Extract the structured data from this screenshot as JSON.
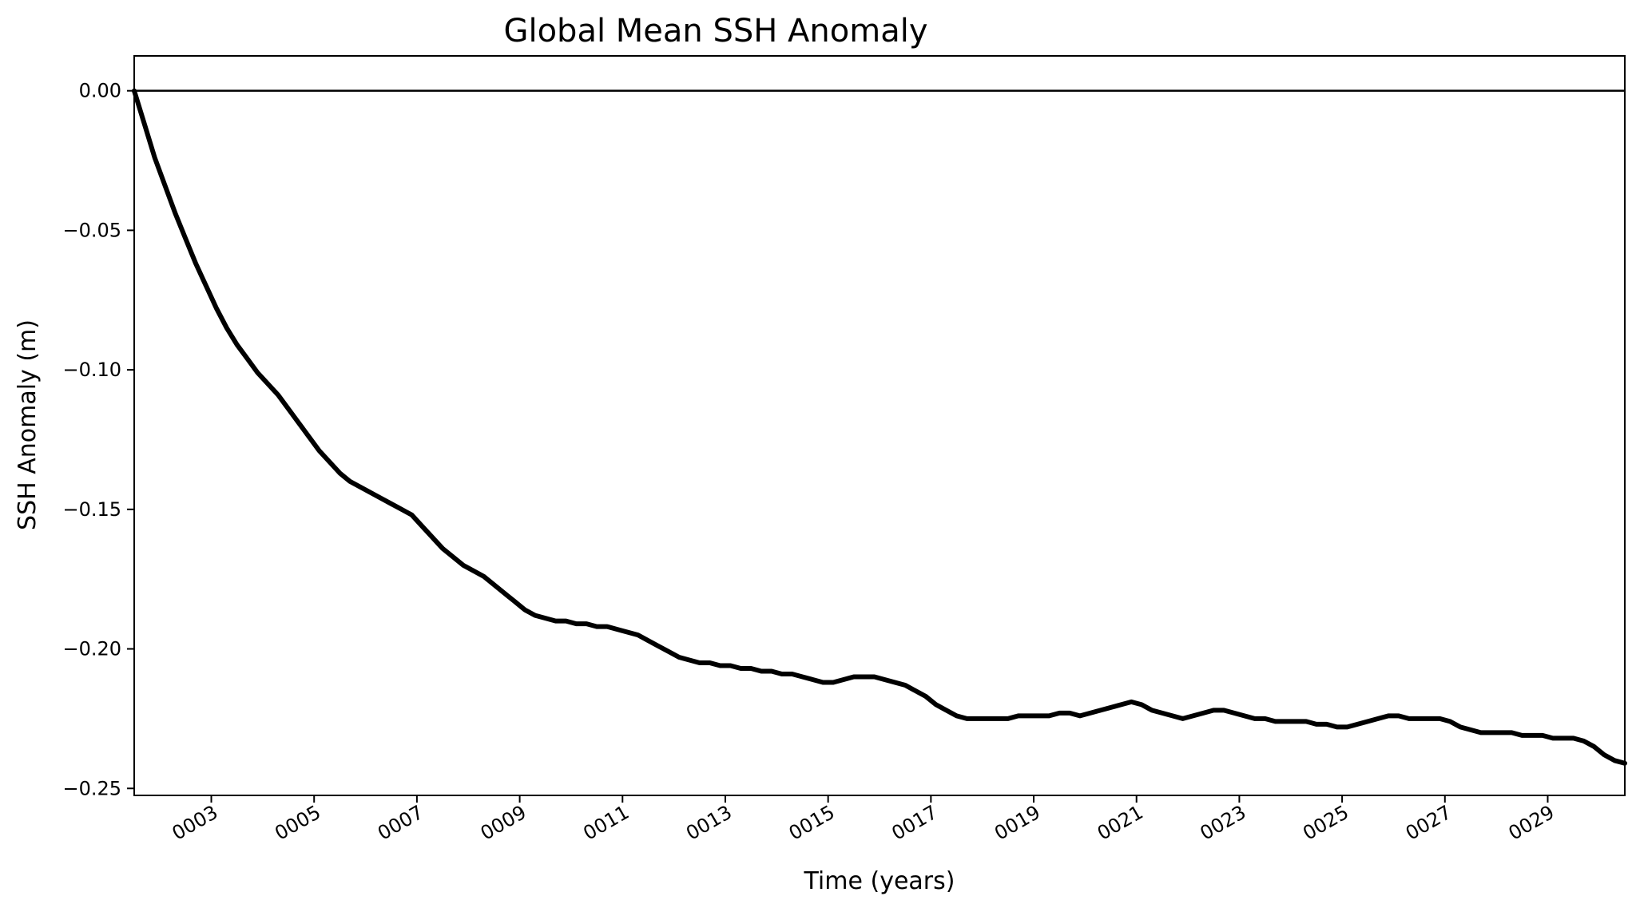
{
  "chart_data": {
    "type": "line",
    "title": "Global Mean SSH Anomaly",
    "xlabel": "Time (years)",
    "ylabel": "SSH Anomaly (m)",
    "xlim": [
      1.5,
      30.5
    ],
    "ylim": [
      -0.2525,
      0.0125
    ],
    "x_ticks": [
      3,
      5,
      7,
      9,
      11,
      13,
      15,
      17,
      19,
      21,
      23,
      25,
      27,
      29
    ],
    "x_tick_labels": [
      "0003",
      "0005",
      "0007",
      "0009",
      "0011",
      "0013",
      "0015",
      "0017",
      "0019",
      "0021",
      "0023",
      "0025",
      "0027",
      "0029"
    ],
    "y_ticks": [
      0.0,
      -0.05,
      -0.1,
      -0.15,
      -0.2,
      -0.25
    ],
    "y_tick_labels": [
      "0.00",
      "−0.05",
      "−0.10",
      "−0.15",
      "−0.20",
      "−0.25"
    ],
    "grid": false,
    "reference_line": 0.0,
    "line_color": "#000000",
    "series": [
      {
        "x": [
          1.5,
          1.7,
          1.9,
          2.1,
          2.3,
          2.5,
          2.7,
          2.9,
          3.1,
          3.3,
          3.5,
          3.7,
          3.9,
          4.1,
          4.3,
          4.5,
          4.7,
          4.9,
          5.1,
          5.3,
          5.5,
          5.7,
          5.9,
          6.1,
          6.3,
          6.5,
          6.7,
          6.9,
          7.1,
          7.3,
          7.5,
          7.7,
          7.9,
          8.1,
          8.3,
          8.5,
          8.7,
          8.9,
          9.1,
          9.3,
          9.5,
          9.7,
          9.9,
          10.1,
          10.3,
          10.5,
          10.7,
          10.9,
          11.1,
          11.3,
          11.5,
          11.7,
          11.9,
          12.1,
          12.3,
          12.5,
          12.7,
          12.9,
          13.1,
          13.3,
          13.5,
          13.7,
          13.9,
          14.1,
          14.3,
          14.5,
          14.7,
          14.9,
          15.1,
          15.3,
          15.5,
          15.7,
          15.9,
          16.1,
          16.3,
          16.5,
          16.7,
          16.9,
          17.1,
          17.3,
          17.5,
          17.7,
          17.9,
          18.1,
          18.3,
          18.5,
          18.7,
          18.9,
          19.1,
          19.3,
          19.5,
          19.7,
          19.9,
          20.1,
          20.3,
          20.5,
          20.7,
          20.9,
          21.1,
          21.3,
          21.5,
          21.7,
          21.9,
          22.1,
          22.3,
          22.5,
          22.7,
          22.9,
          23.1,
          23.3,
          23.5,
          23.7,
          23.9,
          24.1,
          24.3,
          24.5,
          24.7,
          24.9,
          25.1,
          25.3,
          25.5,
          25.7,
          25.9,
          26.1,
          26.3,
          26.5,
          26.7,
          26.9,
          27.1,
          27.3,
          27.5,
          27.7,
          27.9,
          28.1,
          28.3,
          28.5,
          28.7,
          28.9,
          29.1,
          29.3,
          29.5,
          29.7,
          29.9,
          30.1,
          30.3,
          30.5
        ],
        "y": [
          0.0,
          -0.012,
          -0.024,
          -0.034,
          -0.044,
          -0.053,
          -0.062,
          -0.07,
          -0.078,
          -0.085,
          -0.091,
          -0.096,
          -0.101,
          -0.105,
          -0.109,
          -0.114,
          -0.119,
          -0.124,
          -0.129,
          -0.133,
          -0.137,
          -0.14,
          -0.142,
          -0.144,
          -0.146,
          -0.148,
          -0.15,
          -0.152,
          -0.156,
          -0.16,
          -0.164,
          -0.167,
          -0.17,
          -0.172,
          -0.174,
          -0.177,
          -0.18,
          -0.183,
          -0.186,
          -0.188,
          -0.189,
          -0.19,
          -0.19,
          -0.191,
          -0.191,
          -0.192,
          -0.192,
          -0.193,
          -0.194,
          -0.195,
          -0.197,
          -0.199,
          -0.201,
          -0.203,
          -0.204,
          -0.205,
          -0.205,
          -0.206,
          -0.206,
          -0.207,
          -0.207,
          -0.208,
          -0.208,
          -0.209,
          -0.209,
          -0.21,
          -0.211,
          -0.212,
          -0.212,
          -0.211,
          -0.21,
          -0.21,
          -0.21,
          -0.211,
          -0.212,
          -0.213,
          -0.215,
          -0.217,
          -0.22,
          -0.222,
          -0.224,
          -0.225,
          -0.225,
          -0.225,
          -0.225,
          -0.225,
          -0.224,
          -0.224,
          -0.224,
          -0.224,
          -0.223,
          -0.223,
          -0.224,
          -0.223,
          -0.222,
          -0.221,
          -0.22,
          -0.219,
          -0.22,
          -0.222,
          -0.223,
          -0.224,
          -0.225,
          -0.224,
          -0.223,
          -0.222,
          -0.222,
          -0.223,
          -0.224,
          -0.225,
          -0.225,
          -0.226,
          -0.226,
          -0.226,
          -0.226,
          -0.227,
          -0.227,
          -0.228,
          -0.228,
          -0.227,
          -0.226,
          -0.225,
          -0.224,
          -0.224,
          -0.225,
          -0.225,
          -0.225,
          -0.225,
          -0.226,
          -0.228,
          -0.229,
          -0.23,
          -0.23,
          -0.23,
          -0.23,
          -0.231,
          -0.231,
          -0.231,
          -0.232,
          -0.232,
          -0.232,
          -0.233,
          -0.235,
          -0.238,
          -0.24,
          -0.241
        ]
      }
    ]
  }
}
